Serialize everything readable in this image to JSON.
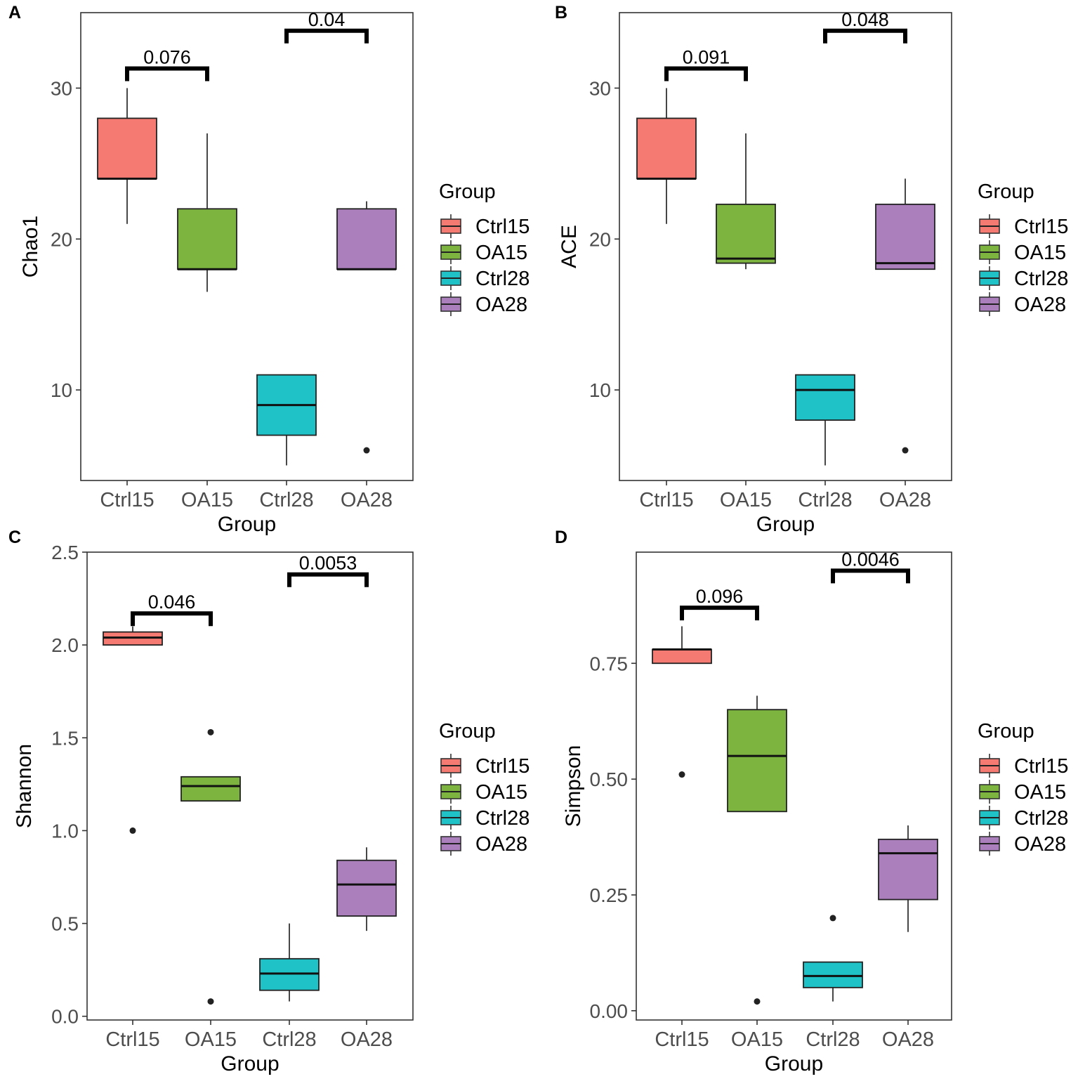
{
  "colors": {
    "Ctrl15": "#F47A72",
    "OA15": "#7CB43F",
    "Ctrl28": "#1FC2C6",
    "OA28": "#AB7FBC",
    "axis": "#333333",
    "bracket": "#000000"
  },
  "chart_data": [
    {
      "type": "box",
      "panel_label": "A",
      "xlabel": "Group",
      "ylabel": "Chao1",
      "categories": [
        "Ctrl15",
        "OA15",
        "Ctrl28",
        "OA28"
      ],
      "ylim": [
        4.0,
        35.0
      ],
      "yticks": [
        10,
        20,
        30
      ],
      "ytick_labels": [
        "10",
        "20",
        "30"
      ],
      "boxes": [
        {
          "group": "Ctrl15",
          "low": 21,
          "q1": 24,
          "median": 24,
          "q3": 28,
          "high": 30,
          "outliers": []
        },
        {
          "group": "OA15",
          "low": 16.5,
          "q1": 18,
          "median": 18,
          "q3": 22,
          "high": 27,
          "outliers": []
        },
        {
          "group": "Ctrl28",
          "low": 5,
          "q1": 7,
          "median": 9,
          "q3": 11,
          "high": 11,
          "outliers": []
        },
        {
          "group": "OA28",
          "low": 18,
          "q1": 18,
          "median": 18,
          "q3": 22,
          "high": 22.5,
          "outliers": [
            6
          ]
        }
      ],
      "comparisons": [
        {
          "from": "Ctrl15",
          "to": "OA15",
          "y": 31.3,
          "label": "0.076"
        },
        {
          "from": "Ctrl28",
          "to": "OA28",
          "y": 33.8,
          "label": "0.04"
        }
      ],
      "legend": {
        "title": "Group",
        "entries": [
          "Ctrl15",
          "OA15",
          "Ctrl28",
          "OA28"
        ]
      }
    },
    {
      "type": "box",
      "panel_label": "B",
      "xlabel": "Group",
      "ylabel": "ACE",
      "categories": [
        "Ctrl15",
        "OA15",
        "Ctrl28",
        "OA28"
      ],
      "ylim": [
        4.0,
        35.0
      ],
      "yticks": [
        10,
        20,
        30
      ],
      "ytick_labels": [
        "10",
        "20",
        "30"
      ],
      "boxes": [
        {
          "group": "Ctrl15",
          "low": 21,
          "q1": 24,
          "median": 24,
          "q3": 28,
          "high": 30,
          "outliers": []
        },
        {
          "group": "OA15",
          "low": 18,
          "q1": 18.4,
          "median": 18.7,
          "q3": 22.3,
          "high": 27,
          "outliers": []
        },
        {
          "group": "Ctrl28",
          "low": 5,
          "q1": 8,
          "median": 10,
          "q3": 11,
          "high": 11,
          "outliers": []
        },
        {
          "group": "OA28",
          "low": 18,
          "q1": 18,
          "median": 18.4,
          "q3": 22.3,
          "high": 24,
          "outliers": [
            6
          ]
        }
      ],
      "comparisons": [
        {
          "from": "Ctrl15",
          "to": "OA15",
          "y": 31.3,
          "label": "0.091"
        },
        {
          "from": "Ctrl28",
          "to": "OA28",
          "y": 33.8,
          "label": "0.048"
        }
      ],
      "legend": {
        "title": "Group",
        "entries": [
          "Ctrl15",
          "OA15",
          "Ctrl28",
          "OA28"
        ]
      }
    },
    {
      "type": "box",
      "panel_label": "C",
      "xlabel": "Group",
      "ylabel": "Shannon",
      "categories": [
        "Ctrl15",
        "OA15",
        "Ctrl28",
        "OA28"
      ],
      "ylim": [
        -0.02,
        2.5
      ],
      "yticks": [
        0.0,
        0.5,
        1.0,
        1.5,
        2.0,
        2.5
      ],
      "ytick_labels": [
        "0.0",
        "0.5",
        "1.0",
        "1.5",
        "2.0",
        "2.5"
      ],
      "boxes": [
        {
          "group": "Ctrl15",
          "low": 2.0,
          "q1": 2.0,
          "median": 2.04,
          "q3": 2.07,
          "high": 2.1,
          "outliers": [
            1.0
          ]
        },
        {
          "group": "OA15",
          "low": 1.16,
          "q1": 1.16,
          "median": 1.24,
          "q3": 1.29,
          "high": 1.29,
          "outliers": [
            1.53,
            0.08
          ]
        },
        {
          "group": "Ctrl28",
          "low": 0.08,
          "q1": 0.14,
          "median": 0.23,
          "q3": 0.31,
          "high": 0.5,
          "outliers": []
        },
        {
          "group": "OA28",
          "low": 0.46,
          "q1": 0.54,
          "median": 0.71,
          "q3": 0.84,
          "high": 0.91,
          "outliers": []
        }
      ],
      "comparisons": [
        {
          "from": "Ctrl15",
          "to": "OA15",
          "y": 2.17,
          "label": "0.046"
        },
        {
          "from": "Ctrl28",
          "to": "OA28",
          "y": 2.38,
          "label": "0.0053"
        }
      ],
      "legend": {
        "title": "Group",
        "entries": [
          "Ctrl15",
          "OA15",
          "Ctrl28",
          "OA28"
        ]
      }
    },
    {
      "type": "box",
      "panel_label": "D",
      "xlabel": "Group",
      "ylabel": "Simpson",
      "categories": [
        "Ctrl15",
        "OA15",
        "Ctrl28",
        "OA28"
      ],
      "ylim": [
        -0.02,
        0.99
      ],
      "yticks": [
        0.0,
        0.25,
        0.5,
        0.75
      ],
      "ytick_labels": [
        "0.00",
        "0.25",
        "0.50",
        "0.75"
      ],
      "boxes": [
        {
          "group": "Ctrl15",
          "low": 0.75,
          "q1": 0.75,
          "median": 0.78,
          "q3": 0.78,
          "high": 0.83,
          "outliers": [
            0.51
          ]
        },
        {
          "group": "OA15",
          "low": 0.43,
          "q1": 0.43,
          "median": 0.55,
          "q3": 0.65,
          "high": 0.68,
          "outliers": [
            0.02
          ]
        },
        {
          "group": "Ctrl28",
          "low": 0.02,
          "q1": 0.05,
          "median": 0.075,
          "q3": 0.105,
          "high": 0.105,
          "outliers": [
            0.2
          ]
        },
        {
          "group": "OA28",
          "low": 0.17,
          "q1": 0.24,
          "median": 0.34,
          "q3": 0.37,
          "high": 0.4,
          "outliers": []
        }
      ],
      "comparisons": [
        {
          "from": "Ctrl15",
          "to": "OA15",
          "y": 0.87,
          "label": "0.096"
        },
        {
          "from": "Ctrl28",
          "to": "OA28",
          "y": 0.95,
          "label": "0.0046"
        }
      ],
      "legend": {
        "title": "Group",
        "entries": [
          "Ctrl15",
          "OA15",
          "Ctrl28",
          "OA28"
        ]
      }
    }
  ]
}
